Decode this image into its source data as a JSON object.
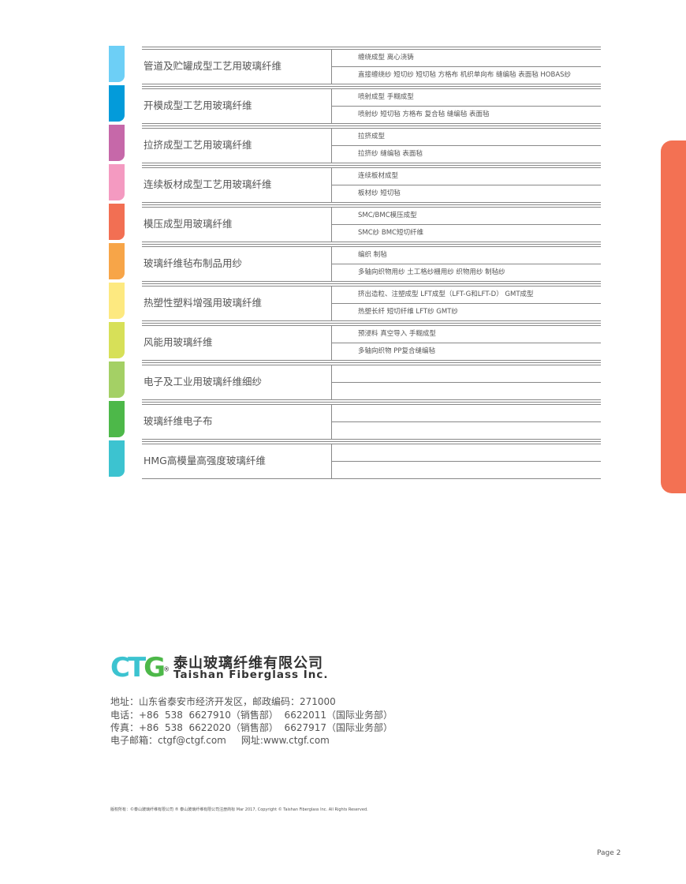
{
  "rows": [
    {
      "color": "#6dcff6",
      "title": "管道及贮罐成型工艺用玻璃纤维",
      "process": "缠绕成型  离心浇铸",
      "products": "直接缠绕纱  短切纱  短切毡  方格布  机织单向布  缝编毡  表面毡  HOBAS纱"
    },
    {
      "color": "#039bda",
      "title": "开模成型工艺用玻璃纤维",
      "process": "喷射成型  手糊成型",
      "products": "喷射纱  短切毡  方格布  复合毡  缝编毡  表面毡"
    },
    {
      "color": "#c668a9",
      "title": "拉挤成型工艺用玻璃纤维",
      "process": "拉挤成型",
      "products": "拉挤纱  缝编毡  表面毡"
    },
    {
      "color": "#f49ac1",
      "title": "连续板材成型工艺用玻璃纤维",
      "process": "连续板材成型",
      "products": "板材纱  短切毡"
    },
    {
      "color": "#f26f53",
      "title": "模压成型用玻璃纤维",
      "process": "SMC/BMC模压成型",
      "products": "SMC纱   BMC短切纤维"
    },
    {
      "color": "#f7a548",
      "title": "玻璃纤维毡布制品用纱",
      "process": "编织  制毡",
      "products": "多轴向织物用纱  土工格纱栅用纱  织物用纱  制毡纱"
    },
    {
      "color": "#fde980",
      "title": "热塑性塑料增强用玻璃纤维",
      "process": "挤出造粒、注塑成型   LFT成型（LFT-G和LFT-D）  GMT成型",
      "products": "热塑长纤  短切纤维  LFT纱  GMT纱"
    },
    {
      "color": "#d7e058",
      "title": "风能用玻璃纤维",
      "process": "预浸料  真空导入  手糊成型",
      "products": "多轴向织物   PP复合缝编毡"
    },
    {
      "color": "#a4d065",
      "title": "电子及工业用玻璃纤维细纱",
      "process": "",
      "products": ""
    },
    {
      "color": "#4db849",
      "title": "玻璃纤维电子布",
      "process": "",
      "products": ""
    },
    {
      "color": "#3cc3d0",
      "title": "HMG高模量高强度玻璃纤维",
      "process": "",
      "products": ""
    }
  ],
  "side_tab_color": "#f37153",
  "logo": {
    "mark": "CTG",
    "company_cn": "泰山玻璃纤维有限公司",
    "company_en": "Taishan Fiberglass Inc.",
    "colors": {
      "cyan": "#3cc3d0",
      "green": "#4db849"
    }
  },
  "contact": {
    "address": "地址：山东省泰安市经济开发区，邮政编码：271000",
    "phone": "电话：+86  538  6627910（销售部）  6622011（国际业务部）",
    "fax": "传真：+86  538  6622020（销售部）  6627917（国际业务部）",
    "email": "电子邮箱：ctgf@ctgf.com     网址:www.ctgf.com"
  },
  "copyright": "版权所有：©泰山玻璃纤维有限公司  ® 泰山玻璃纤维有限公司注册商标   Mar 2017, Copyright © Taishan Fiberglass Inc. All Rights Reserved.",
  "page": "Page 2"
}
